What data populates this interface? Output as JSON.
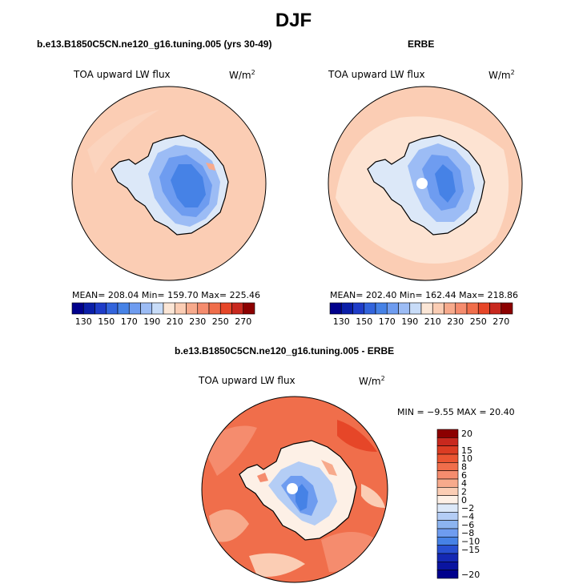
{
  "season": "DJF",
  "panels": [
    {
      "title": "b.e13.B1850C5CN.ne120_g16.tuning.005 (yrs 30-49)",
      "variable": "TOA upward LW flux",
      "units": "W/m",
      "units_exp": "2",
      "stats": "MEAN= 208.04   Min= 159.70   Max= 225.46",
      "colorbar": {
        "colors": [
          "#00008c",
          "#0a1ea8",
          "#1e3cc8",
          "#3264dc",
          "#4682e6",
          "#6e9cf0",
          "#9cbcf5",
          "#c8dcf8",
          "#fbe6d6",
          "#fbcdb4",
          "#f7aa8c",
          "#f58c6e",
          "#f06e4b",
          "#e64628",
          "#c8281e",
          "#8c0000"
        ],
        "labels": [
          "130",
          "150",
          "170",
          "190",
          "210",
          "230",
          "250",
          "270"
        ]
      }
    },
    {
      "title": "ERBE",
      "variable": "TOA upward LW flux",
      "units": "W/m",
      "units_exp": "2",
      "stats": "MEAN= 202.40   Min= 162.44   Max= 218.86",
      "colorbar": {
        "colors": [
          "#00008c",
          "#0a1ea8",
          "#1e3cc8",
          "#3264dc",
          "#4682e6",
          "#6e9cf0",
          "#9cbcf5",
          "#c8dcf8",
          "#fbe6d6",
          "#fbcdb4",
          "#f7aa8c",
          "#f58c6e",
          "#f06e4b",
          "#e64628",
          "#c8281e",
          "#8c0000"
        ],
        "labels": [
          "130",
          "150",
          "170",
          "190",
          "210",
          "230",
          "250",
          "270"
        ]
      }
    },
    {
      "title": "b.e13.B1850C5CN.ne120_g16.tuning.005 - ERBE",
      "variable": "TOA upward LW flux",
      "units": "W/m",
      "units_exp": "2",
      "stats": "MIN =  −9.55  MAX =  20.40",
      "colorbar": {
        "colors": [
          "#8c0000",
          "#c8281e",
          "#dc3c23",
          "#eb5532",
          "#f06e4b",
          "#f58c6e",
          "#f7aa8c",
          "#fbcdb4",
          "#fdf0e6",
          "#dce8f8",
          "#b4cdf5",
          "#8cb4f0",
          "#6e9cf0",
          "#4682e6",
          "#2850d2",
          "#1428b4",
          "#0a14a0",
          "#00008c"
        ],
        "labels": [
          "20",
          "15",
          "10",
          "8",
          "6",
          "4",
          "2",
          "0",
          "−2",
          "−4",
          "−6",
          "−8",
          "−10",
          "−15",
          "−20"
        ]
      }
    }
  ],
  "colors": {
    "top_ocean": "#fbcdb4",
    "erbe_ocean": "#fde3d2",
    "diff_ocean": "#f06e4b",
    "ice_light": "#b4cdf5",
    "ice_mid": "#6e9cf0",
    "ice_deep": "#3264dc"
  }
}
